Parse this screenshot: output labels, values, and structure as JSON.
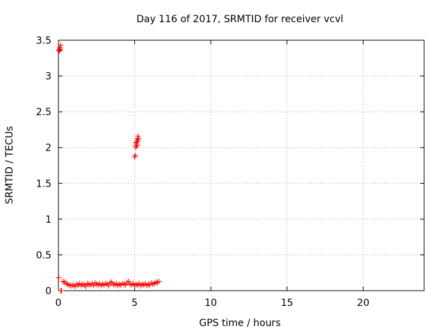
{
  "chart_data": {
    "type": "scatter",
    "title": "Day 116 of 2017, SRMTID for receiver vcvl",
    "xlabel": "GPS time / hours",
    "ylabel": "SRMTID / TECUs",
    "xlim": [
      0,
      24
    ],
    "ylim": [
      0,
      3.5
    ],
    "xticks": [
      0,
      5,
      10,
      15,
      20
    ],
    "xtick_labels": [
      "0",
      "5",
      "10",
      "15",
      "20"
    ],
    "yticks": [
      0,
      0.5,
      1,
      1.5,
      2,
      2.5,
      3,
      3.5
    ],
    "ytick_labels": [
      "0",
      "0.5",
      "1",
      "1.5",
      "2",
      "2.5",
      "3",
      "3.5"
    ],
    "grid": true,
    "marker": "+",
    "series": [
      {
        "name": "SRMTID",
        "color": "#ff0000",
        "points": [
          [
            0.05,
            3.36
          ],
          [
            0.08,
            3.38
          ],
          [
            0.1,
            3.4
          ],
          [
            0.12,
            3.37
          ],
          [
            0.15,
            3.43
          ],
          [
            0.07,
            3.35
          ],
          [
            0.02,
            0.18
          ],
          [
            0.15,
            0.0
          ],
          [
            0.2,
            0.0
          ],
          [
            0.3,
            0.13
          ],
          [
            0.4,
            0.12
          ],
          [
            0.5,
            0.1
          ],
          [
            0.6,
            0.09
          ],
          [
            0.7,
            0.08
          ],
          [
            0.8,
            0.07
          ],
          [
            0.9,
            0.07
          ],
          [
            1.0,
            0.08
          ],
          [
            1.1,
            0.06
          ],
          [
            1.2,
            0.09
          ],
          [
            1.3,
            0.08
          ],
          [
            1.4,
            0.1
          ],
          [
            1.5,
            0.07
          ],
          [
            1.6,
            0.09
          ],
          [
            1.7,
            0.08
          ],
          [
            1.8,
            0.06
          ],
          [
            1.9,
            0.1
          ],
          [
            2.0,
            0.09
          ],
          [
            2.1,
            0.08
          ],
          [
            2.2,
            0.1
          ],
          [
            2.3,
            0.07
          ],
          [
            2.4,
            0.11
          ],
          [
            2.5,
            0.09
          ],
          [
            2.6,
            0.08
          ],
          [
            2.7,
            0.1
          ],
          [
            2.8,
            0.07
          ],
          [
            2.9,
            0.09
          ],
          [
            3.0,
            0.08
          ],
          [
            3.1,
            0.1
          ],
          [
            3.2,
            0.09
          ],
          [
            3.3,
            0.07
          ],
          [
            3.4,
            0.11
          ],
          [
            3.5,
            0.12
          ],
          [
            3.6,
            0.09
          ],
          [
            3.7,
            0.08
          ],
          [
            3.8,
            0.1
          ],
          [
            3.9,
            0.07
          ],
          [
            4.0,
            0.09
          ],
          [
            4.1,
            0.08
          ],
          [
            4.2,
            0.1
          ],
          [
            4.3,
            0.09
          ],
          [
            4.4,
            0.08
          ],
          [
            4.5,
            0.11
          ],
          [
            4.6,
            0.13
          ],
          [
            4.7,
            0.09
          ],
          [
            4.8,
            0.08
          ],
          [
            4.9,
            0.1
          ],
          [
            5.0,
            0.07
          ],
          [
            5.1,
            0.09
          ],
          [
            5.2,
            0.08
          ],
          [
            5.3,
            0.1
          ],
          [
            5.4,
            0.07
          ],
          [
            5.5,
            0.09
          ],
          [
            5.6,
            0.08
          ],
          [
            5.7,
            0.1
          ],
          [
            5.8,
            0.07
          ],
          [
            5.9,
            0.09
          ],
          [
            6.0,
            0.08
          ],
          [
            6.1,
            0.11
          ],
          [
            6.2,
            0.09
          ],
          [
            6.3,
            0.1
          ],
          [
            6.4,
            0.12
          ],
          [
            6.5,
            0.11
          ],
          [
            6.6,
            0.13
          ],
          [
            5.0,
            1.87
          ],
          [
            5.05,
            1.89
          ],
          [
            5.08,
            2.0
          ],
          [
            5.1,
            2.02
          ],
          [
            5.12,
            2.05
          ],
          [
            5.15,
            2.08
          ],
          [
            5.18,
            2.1
          ],
          [
            5.2,
            2.13
          ],
          [
            5.22,
            2.16
          ],
          [
            5.25,
            2.12
          ],
          [
            5.1,
            2.07
          ],
          [
            5.15,
            2.03
          ]
        ]
      }
    ]
  }
}
